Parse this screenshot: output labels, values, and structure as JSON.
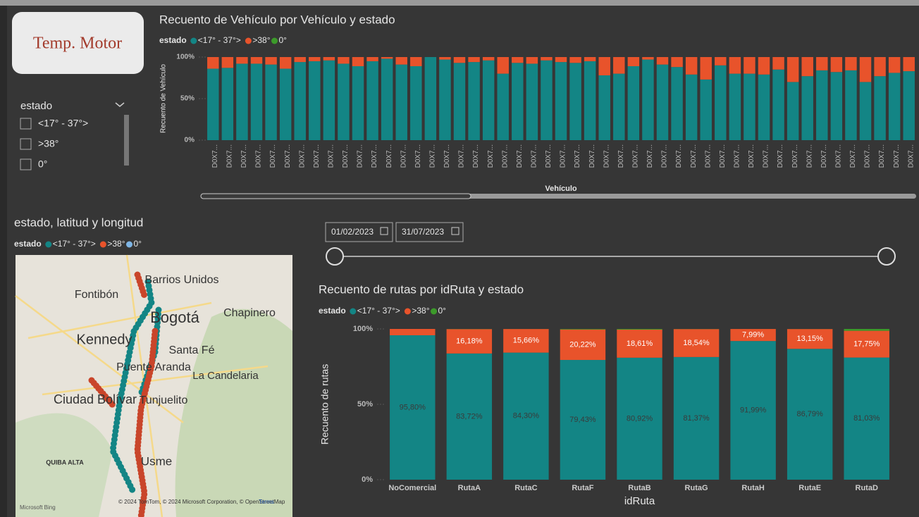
{
  "card": {
    "title": "Temp. Motor"
  },
  "slicer": {
    "title": "estado",
    "options": [
      "<17° - 37°>",
      ">38°",
      "0°"
    ]
  },
  "dates": {
    "start": "01/02/2023",
    "end": "31/07/2023"
  },
  "map": {
    "title": "estado, latitud y longitud",
    "legend_title": "estado",
    "legend": [
      {
        "name": "<17° - 37°>",
        "color": "#138585"
      },
      {
        "name": ">38°",
        "color": "#e8532b"
      },
      {
        "name": "0°",
        "color": "#7fb6e6"
      }
    ],
    "places": [
      "Barrios Unidos",
      "Fontibón",
      "Bogotá",
      "Chapinero",
      "Kennedy",
      "Santa Fé",
      "Puente Aranda",
      "La Candelaria",
      "Tunjuelito",
      "Ciudad Bolívar",
      "Usme",
      "QUIBA ALTA"
    ],
    "attribution": "© 2024 TomTom, © 2024 Microsoft Corporation, © OpenStreetMap",
    "brand": "Microsoft Bing",
    "terms": "Terms"
  },
  "chart_data": [
    {
      "type": "bar",
      "stacked": true,
      "title": "Recuento de Vehículo por Vehículo y estado",
      "legend_title": "estado",
      "x_label": "Vehículo",
      "y_label": "Recuento de Vehículo",
      "categories": [
        "D0X7...",
        "D0X7...",
        "D0X7...",
        "D0X7...",
        "D0X7...",
        "D0X7...",
        "D0X7...",
        "D0X7...",
        "D0X7...",
        "D0X7...",
        "D0X7...",
        "D0X7...",
        "D0X7...",
        "D0X7...",
        "D0X7...",
        "D0X7...",
        "D0X7...",
        "D0X7...",
        "D0X7...",
        "D0X7...",
        "D0X7...",
        "D0X7...",
        "D0X7...",
        "D0X7...",
        "D0X7...",
        "D0X7...",
        "D0X7...",
        "D0X7...",
        "D0X7...",
        "D0X7...",
        "D0X7...",
        "D0X7...",
        "D0X7...",
        "D0X7...",
        "D0X7...",
        "D0X7...",
        "D0X7...",
        "D0X7...",
        "D0X7...",
        "D0X7...",
        "D0X7...",
        "D0X7...",
        "D0X7...",
        "D0X7...",
        "D0X7...",
        "D0X7...",
        "D0X7...",
        "D0X7...",
        "D0X7..."
      ],
      "series": [
        {
          "name": "<17° - 37°>",
          "color": "#138585",
          "values": [
            86,
            87,
            92,
            92,
            91,
            86,
            94,
            95,
            96,
            92,
            89,
            95,
            98,
            91,
            89,
            100,
            97,
            93,
            94,
            96,
            80,
            93,
            92,
            96,
            94,
            93,
            95,
            78,
            80,
            89,
            97,
            91,
            88,
            79,
            73,
            90,
            80,
            80,
            79,
            85,
            70,
            77,
            84,
            82,
            84,
            70,
            77,
            81,
            83
          ]
        },
        {
          "name": ">38°",
          "color": "#e8532b",
          "values": [
            14,
            13,
            8,
            8,
            9,
            14,
            6,
            5,
            4,
            8,
            11,
            5,
            2,
            9,
            11,
            0,
            3,
            7,
            6,
            4,
            20,
            7,
            8,
            4,
            6,
            7,
            5,
            22,
            20,
            11,
            3,
            9,
            12,
            21,
            27,
            10,
            20,
            20,
            21,
            15,
            30,
            23,
            16,
            18,
            16,
            30,
            23,
            19,
            17
          ]
        },
        {
          "name": "0°",
          "color": "#3c9a2a",
          "values": [
            0,
            0,
            0,
            0,
            0,
            0,
            0,
            0,
            0,
            0,
            0,
            0,
            0,
            0,
            0,
            0,
            0,
            0,
            0,
            0,
            0,
            0,
            0,
            0,
            0,
            0,
            0,
            0,
            0,
            0,
            0,
            0,
            0,
            0,
            0,
            0,
            0,
            0,
            0,
            0,
            0,
            0,
            0,
            0,
            0,
            0,
            0,
            0,
            0
          ]
        }
      ],
      "ylim": [
        0,
        100
      ],
      "yticks": [
        {
          "value": 0,
          "label": "0%"
        },
        {
          "value": 50,
          "label": "50%"
        },
        {
          "value": 100,
          "label": "100%"
        }
      ]
    },
    {
      "type": "bar",
      "stacked": true,
      "title": "Recuento de rutas por idRuta y estado",
      "legend_title": "estado",
      "x_label": "idRuta",
      "y_label": "Recuento de rutas",
      "categories": [
        "NoComercial",
        "RutaA",
        "RutaC",
        "RutaF",
        "RutaB",
        "RutaG",
        "RutaH",
        "RutaE",
        "RutaD"
      ],
      "series": [
        {
          "name": "<17° - 37°>",
          "color": "#138585",
          "values": [
            95.8,
            83.72,
            84.3,
            79.43,
            80.92,
            81.37,
            91.99,
            86.79,
            81.03
          ],
          "value_labels": [
            "95,80%",
            "83,72%",
            "84,30%",
            "79,43%",
            "80,92%",
            "81,37%",
            "91,99%",
            "86,79%",
            "81,03%"
          ]
        },
        {
          "name": ">38°",
          "color": "#e8532b",
          "values": [
            4.2,
            16.18,
            15.66,
            20.22,
            18.61,
            18.54,
            7.99,
            13.15,
            17.75
          ],
          "value_labels": [
            null,
            "16,18%",
            "15,66%",
            "20,22%",
            "18,61%",
            "18,54%",
            "7,99%",
            "13,15%",
            "17,75%"
          ]
        },
        {
          "name": "0°",
          "color": "#3c9a2a",
          "values": [
            0,
            0.1,
            0.04,
            0.35,
            0.47,
            0.09,
            0.02,
            0.06,
            1.22
          ]
        }
      ],
      "ylim": [
        0,
        100
      ],
      "yticks": [
        {
          "value": 0,
          "label": "0%"
        },
        {
          "value": 50,
          "label": "50%"
        },
        {
          "value": 100,
          "label": "100%"
        }
      ]
    }
  ]
}
